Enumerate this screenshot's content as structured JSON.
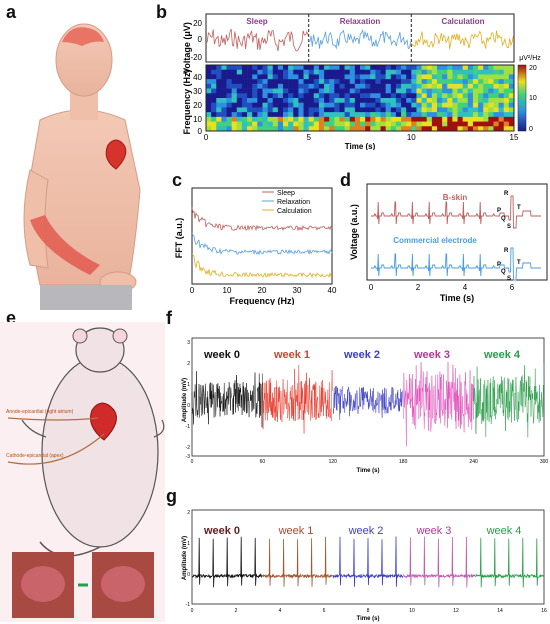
{
  "panels": {
    "a": "a",
    "b": "b",
    "c": "c",
    "d": "d",
    "e": "e",
    "f": "f",
    "g": "g"
  },
  "colors": {
    "sleep": "#c0605f",
    "relaxation": "#5aa0e0",
    "calculation": "#e0b020",
    "bskin": "#c0605f",
    "commercial": "#4a9ee0",
    "week0": "#111111",
    "week1": "#e83a2c",
    "week2": "#3b3fc0",
    "week3": "#e04ab8",
    "week4": "#2a9d4a"
  },
  "illustrations": {
    "human": "human-figure-heart-brain-arm",
    "rat": "rat-epicardial-electrode-diagram",
    "rat_photos": "rat-heart-surgical-photos"
  },
  "rat_labels": {
    "anode": "Anode-epicardial (right atrium)",
    "cathode": "Cathode-epicardial (apex)"
  },
  "chart_data": [
    {
      "id": "b",
      "type": "line",
      "ylabel": "Voltage (μV)",
      "ylim": [
        -20,
        20
      ],
      "yticks": [
        "20",
        "0",
        "-20"
      ],
      "segments": [
        {
          "name": "Sleep",
          "x_range": [
            0,
            5
          ]
        },
        {
          "name": "Relaxation",
          "x_range": [
            5,
            10
          ]
        },
        {
          "name": "Calculation",
          "x_range": [
            10,
            15
          ]
        }
      ],
      "spectrogram": {
        "type": "heatmap",
        "ylabel": "Frequency (Hz)",
        "ylim": [
          0,
          45
        ],
        "yticks": [
          "40",
          "30",
          "20",
          "10",
          "0"
        ],
        "xlabel": "Time (s)",
        "xlim": [
          0,
          15
        ],
        "xticks": [
          "0",
          "5",
          "10",
          "15"
        ],
        "colorbar_label": "μV²/Hz",
        "colorbar_ticks": [
          "20",
          "10",
          "0"
        ],
        "colorbar_range": [
          0,
          20
        ]
      }
    },
    {
      "id": "c",
      "type": "line",
      "xlabel": "Frequency (Hz)",
      "ylabel": "FFT (a.u.)",
      "xlim": [
        0,
        40
      ],
      "xticks": [
        "0",
        "10",
        "20",
        "30",
        "40"
      ],
      "series": [
        {
          "name": "Sleep"
        },
        {
          "name": "Relaxation"
        },
        {
          "name": "Calculation"
        }
      ],
      "legend": "top-right"
    },
    {
      "id": "d",
      "type": "line",
      "xlabel": "Time (s)",
      "ylabel": "Voltage (a.u.)",
      "xlim": [
        0,
        7
      ],
      "xticks": [
        "0",
        "2",
        "4",
        "6"
      ],
      "series": [
        {
          "name": "B-skin"
        },
        {
          "name": "Commercial electrode"
        }
      ],
      "wave_labels": [
        "R",
        "P",
        "Q",
        "T",
        "S"
      ]
    },
    {
      "id": "f",
      "type": "line",
      "xlabel": "Time (s)",
      "ylabel": "Amplitude (mV)",
      "xlim": [
        0,
        300
      ],
      "ylim": [
        -3,
        3
      ],
      "xticks": [
        "0",
        "60",
        "120",
        "180",
        "240",
        "300"
      ],
      "yticks": [
        "3",
        "2",
        "1",
        "0",
        "-1",
        "-2",
        "-3"
      ],
      "series": [
        {
          "name": "week 0",
          "x_range": [
            0,
            60
          ]
        },
        {
          "name": "week 1",
          "x_range": [
            60,
            120
          ]
        },
        {
          "name": "week 2",
          "x_range": [
            120,
            180
          ]
        },
        {
          "name": "week 3",
          "x_range": [
            180,
            240
          ]
        },
        {
          "name": "week 4",
          "x_range": [
            240,
            300
          ]
        }
      ]
    },
    {
      "id": "g",
      "type": "line",
      "xlabel": "Time (s)",
      "ylabel": "Amplitude (mV)",
      "xlim": [
        0,
        16
      ],
      "ylim": [
        -1,
        2
      ],
      "xticks": [
        "0",
        "2",
        "4",
        "6",
        "8",
        "10",
        "12",
        "14",
        "16"
      ],
      "yticks": [
        "2",
        "1",
        "0",
        "-1"
      ],
      "series": [
        {
          "name": "week 0",
          "x_range": [
            0,
            3.2
          ]
        },
        {
          "name": "week 1",
          "x_range": [
            3.2,
            6.4
          ]
        },
        {
          "name": "week 2",
          "x_range": [
            6.4,
            9.6
          ]
        },
        {
          "name": "week 3",
          "x_range": [
            9.6,
            12.8
          ]
        },
        {
          "name": "week 4",
          "x_range": [
            12.8,
            16
          ]
        }
      ]
    }
  ]
}
